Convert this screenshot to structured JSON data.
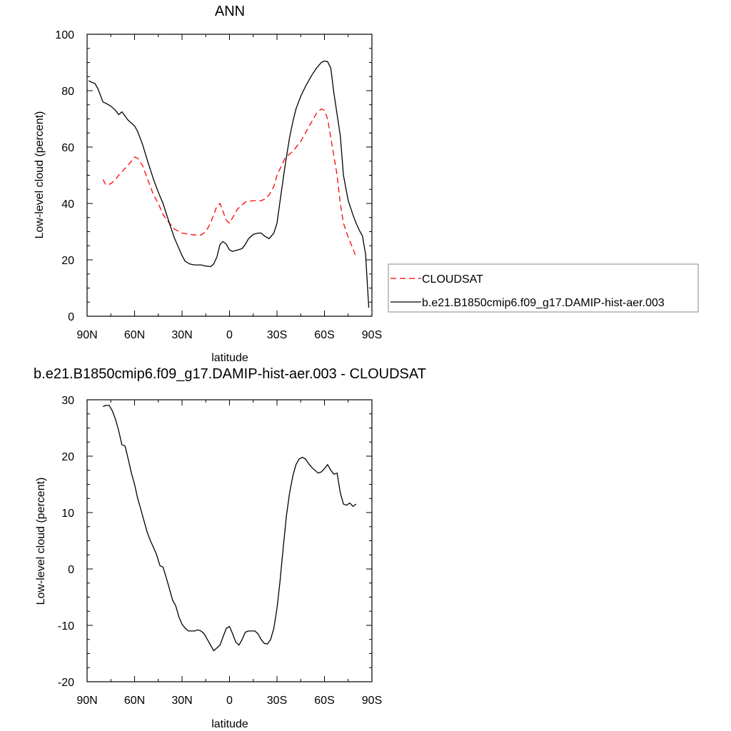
{
  "chart_data": [
    {
      "type": "line",
      "title": "ANN",
      "xlabel": "latitude",
      "ylabel": "Low-level cloud (percent)",
      "xlim": [
        90,
        -90
      ],
      "ylim": [
        0,
        100
      ],
      "xticks": [
        {
          "value": 90,
          "label": "90N"
        },
        {
          "value": 60,
          "label": "60N"
        },
        {
          "value": 30,
          "label": "30N"
        },
        {
          "value": 0,
          "label": "0"
        },
        {
          "value": -30,
          "label": "30S"
        },
        {
          "value": -60,
          "label": "60S"
        },
        {
          "value": -90,
          "label": "90S"
        }
      ],
      "yticks": [
        {
          "value": 0,
          "label": "0"
        },
        {
          "value": 20,
          "label": "20"
        },
        {
          "value": 40,
          "label": "40"
        },
        {
          "value": 60,
          "label": "60"
        },
        {
          "value": 80,
          "label": "80"
        },
        {
          "value": 100,
          "label": "100"
        }
      ],
      "legend_position": "right",
      "series": [
        {
          "name": "CLOUDSAT",
          "color": "#ff0000",
          "dash": "dashed",
          "x": [
            80,
            78,
            75,
            72,
            70,
            65,
            62,
            60,
            58,
            55,
            52,
            48,
            45,
            42,
            38,
            35,
            30,
            25,
            22,
            18,
            15,
            12,
            10,
            8,
            6,
            4,
            2,
            0,
            -2,
            -5,
            -8,
            -10,
            -15,
            -20,
            -22,
            -25,
            -28,
            -30,
            -35,
            -40,
            -45,
            -50,
            -55,
            -58,
            -60,
            -62,
            -65,
            -68,
            -70,
            -72,
            -75,
            -78,
            -80
          ],
          "y": [
            48.5,
            46.5,
            47,
            48.5,
            50,
            53,
            55,
            56.5,
            56,
            53.5,
            49,
            43,
            40,
            36,
            33,
            31,
            29.5,
            29,
            28.8,
            28.8,
            30,
            33,
            36,
            39,
            40,
            37,
            34,
            33,
            35,
            38,
            39.5,
            40.5,
            41,
            41,
            41.5,
            43,
            46,
            50,
            56,
            58.5,
            62,
            67,
            72,
            73.5,
            73,
            70,
            60,
            50,
            40,
            33,
            28,
            24,
            21
          ]
        },
        {
          "name": "b.e21.B1850cmip6.f09_g17.DAMIP-hist-aer.003",
          "color": "#000000",
          "dash": "solid",
          "x": [
            89,
            87,
            85,
            83,
            80,
            78,
            75,
            72,
            70,
            68,
            66,
            64,
            60,
            58,
            55,
            52,
            48,
            45,
            42,
            40,
            38,
            35,
            30,
            28,
            25,
            22,
            20,
            18,
            15,
            12,
            10,
            8,
            6,
            4,
            2,
            0,
            -2,
            -5,
            -8,
            -10,
            -12,
            -15,
            -18,
            -20,
            -22,
            -25,
            -28,
            -30,
            -32,
            -35,
            -38,
            -40,
            -42,
            -45,
            -48,
            -50,
            -52,
            -55,
            -58,
            -60,
            -62,
            -64,
            -66,
            -70,
            -72,
            -75,
            -78,
            -80,
            -82,
            -84,
            -86,
            -88
          ],
          "y": [
            83.5,
            83,
            82.5,
            80.5,
            76,
            75.5,
            74.5,
            73,
            71.5,
            72.5,
            71,
            69.5,
            67.5,
            65.5,
            61,
            55.5,
            48.5,
            44,
            40,
            36.5,
            33,
            28,
            21.5,
            19.5,
            18.5,
            18.2,
            18.2,
            18.2,
            17.8,
            17.6,
            18.5,
            21,
            25.5,
            26.5,
            25.5,
            23.5,
            23,
            23.5,
            24,
            25.5,
            27.5,
            29,
            29.5,
            29.5,
            28.5,
            27.5,
            29.5,
            33,
            41,
            53,
            63.5,
            69,
            73.5,
            78,
            81.5,
            83.5,
            85.5,
            88,
            90,
            90.5,
            90.3,
            88,
            79,
            64,
            50,
            41,
            36,
            33,
            30.5,
            28.5,
            22,
            3
          ]
        }
      ]
    },
    {
      "type": "line",
      "title": "b.e21.B1850cmip6.f09_g17.DAMIP-hist-aer.003 - CLOUDSAT",
      "xlabel": "latitude",
      "ylabel": "Low-level cloud (percent)",
      "xlim": [
        90,
        -90
      ],
      "ylim": [
        -20,
        30
      ],
      "xticks": [
        {
          "value": 90,
          "label": "90N"
        },
        {
          "value": 60,
          "label": "60N"
        },
        {
          "value": 30,
          "label": "30N"
        },
        {
          "value": 0,
          "label": "0"
        },
        {
          "value": -30,
          "label": "30S"
        },
        {
          "value": -60,
          "label": "60S"
        },
        {
          "value": -90,
          "label": "90S"
        }
      ],
      "yticks": [
        {
          "value": -20,
          "label": "-20"
        },
        {
          "value": -10,
          "label": "-10"
        },
        {
          "value": 0,
          "label": "0"
        },
        {
          "value": 10,
          "label": "10"
        },
        {
          "value": 20,
          "label": "20"
        },
        {
          "value": 30,
          "label": "30"
        }
      ],
      "series": [
        {
          "color": "#000000",
          "dash": "solid",
          "x": [
            80,
            78,
            76,
            74,
            72,
            70,
            68,
            66,
            64,
            62,
            60,
            58,
            56,
            54,
            52,
            50,
            48,
            46,
            44,
            42,
            40,
            38,
            36,
            34,
            32,
            30,
            28,
            26,
            24,
            22,
            20,
            18,
            16,
            14,
            12,
            10,
            8,
            6,
            4,
            2,
            0,
            -2,
            -4,
            -6,
            -8,
            -10,
            -12,
            -14,
            -16,
            -18,
            -20,
            -22,
            -24,
            -26,
            -28,
            -30,
            -32,
            -34,
            -36,
            -38,
            -40,
            -42,
            -44,
            -46,
            -48,
            -50,
            -52,
            -54,
            -56,
            -58,
            -60,
            -62,
            -64,
            -66,
            -68,
            -70,
            -72,
            -74,
            -76,
            -78,
            -80
          ],
          "y": [
            28.8,
            29,
            29,
            28,
            26.5,
            24.5,
            22,
            21.8,
            19.5,
            17,
            15,
            12.5,
            10.5,
            8.5,
            6.5,
            5,
            3.8,
            2.5,
            0.6,
            0.3,
            -1.5,
            -3.5,
            -5.5,
            -6.5,
            -8.5,
            -9.8,
            -10.5,
            -11,
            -11,
            -11,
            -10.8,
            -11,
            -11.5,
            -12.5,
            -13.5,
            -14.5,
            -14,
            -13.5,
            -12,
            -10.5,
            -10.2,
            -11.5,
            -13,
            -13.5,
            -12.5,
            -11.2,
            -11,
            -11,
            -11,
            -11.5,
            -12.5,
            -13.2,
            -13.3,
            -12.5,
            -10.5,
            -7,
            -2,
            4,
            9.5,
            13.5,
            16.5,
            18.5,
            19.5,
            19.8,
            19.5,
            18.7,
            18,
            17.5,
            17,
            17.2,
            17.8,
            18.5,
            17.5,
            16.8,
            17,
            13.5,
            11.5,
            11.3,
            11.7,
            11.1,
            11.5
          ]
        }
      ]
    }
  ]
}
